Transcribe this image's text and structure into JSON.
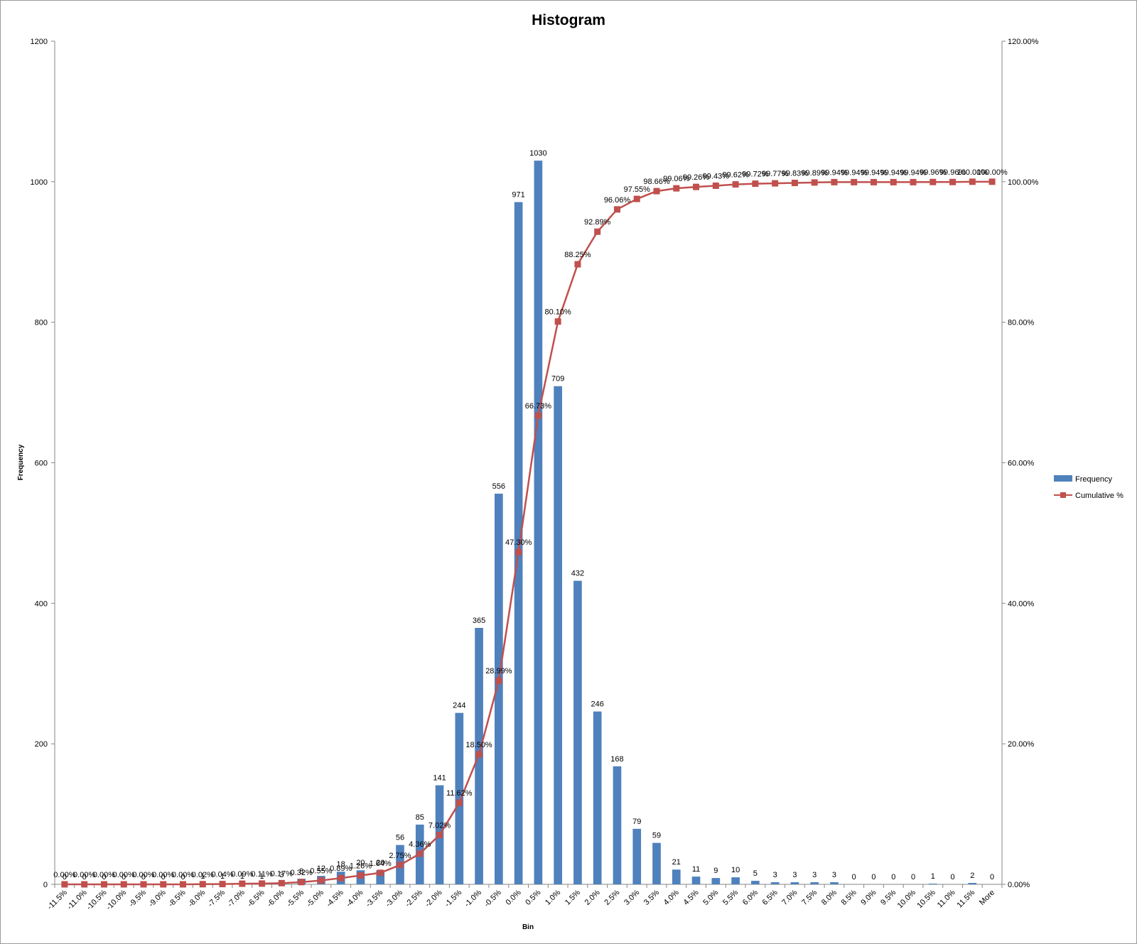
{
  "chart_data": {
    "type": "bar",
    "title": "Histogram",
    "xlabel": "Bin",
    "ylabel": "Frequency",
    "ylim": [
      0,
      1200
    ],
    "y2lim": [
      0,
      1.2
    ],
    "y_ticks": [
      "0",
      "200",
      "400",
      "600",
      "800",
      "1000",
      "1200"
    ],
    "y2_ticks": [
      "0.00%",
      "20.00%",
      "40.00%",
      "60.00%",
      "80.00%",
      "100.00%",
      "120.00%"
    ],
    "grid": false,
    "legend_position": "right",
    "categories": [
      "-11.5%",
      "-11.0%",
      "-10.5%",
      "-10.0%",
      "-9.5%",
      "-9.0%",
      "-8.5%",
      "-8.0%",
      "-7.5%",
      "-7.0%",
      "-6.5%",
      "-6.0%",
      "-5.5%",
      "-5.0%",
      "-4.5%",
      "-4.0%",
      "-3.5%",
      "-3.0%",
      "-2.5%",
      "-2.0%",
      "-1.5%",
      "-1.0%",
      "-0.5%",
      "0.0%",
      "0.5%",
      "1.0%",
      "1.5%",
      "2.0%",
      "2.5%",
      "3.0%",
      "3.5%",
      "4.0%",
      "4.5%",
      "5.0%",
      "5.5%",
      "6.0%",
      "6.5%",
      "7.0%",
      "7.5%",
      "8.0%",
      "8.5%",
      "9.0%",
      "9.5%",
      "10.0%",
      "10.5%",
      "11.0%",
      "11.5%",
      "More"
    ],
    "series": [
      {
        "name": "Frequency",
        "kind": "bar",
        "axis": "left",
        "color": "#4f81bd",
        "values": [
          0,
          0,
          0,
          0,
          0,
          0,
          0,
          1,
          1,
          1,
          1,
          3,
          8,
          12,
          18,
          20,
          20,
          56,
          85,
          141,
          244,
          365,
          556,
          971,
          1030,
          709,
          432,
          246,
          168,
          79,
          59,
          21,
          11,
          9,
          10,
          5,
          3,
          3,
          3,
          3,
          0,
          0,
          0,
          0,
          1,
          0,
          2,
          0
        ],
        "labels": [
          "0",
          "0",
          "0",
          "0",
          "0",
          "0",
          "0",
          "1",
          "1",
          "1",
          "1",
          "3",
          "8",
          "12",
          "18",
          "20",
          "20",
          "56",
          "85",
          "141",
          "244",
          "365",
          "556",
          "971",
          "1030",
          "709",
          "432",
          "246",
          "168",
          "79",
          "59",
          "21",
          "11",
          "9",
          "10",
          "5",
          "3",
          "3",
          "3",
          "3",
          "0",
          "0",
          "0",
          "0",
          "1",
          "0",
          "2",
          "0"
        ]
      },
      {
        "name": "Cumulative %",
        "kind": "line",
        "axis": "right",
        "color": "#c0504d",
        "values": [
          0.0,
          0.0,
          0.0,
          0.0,
          0.0,
          0.0,
          0.0,
          0.0002,
          0.0004,
          0.0009,
          0.0011,
          0.0017,
          0.0032,
          0.0055,
          0.0089,
          0.0126,
          0.0164,
          0.0275,
          0.0436,
          0.0702,
          0.1162,
          0.185,
          0.2899,
          0.473,
          0.6673,
          0.801,
          0.8825,
          0.9289,
          0.9606,
          0.9755,
          0.9866,
          0.9906,
          0.9926,
          0.9943,
          0.9962,
          0.9972,
          0.9977,
          0.9983,
          0.9989,
          0.9994,
          0.9994,
          0.9994,
          0.9994,
          0.9994,
          0.9996,
          0.9996,
          1.0,
          1.0
        ],
        "labels": [
          "0.00%",
          "0.00%",
          "0.00%",
          "0.00%",
          "0.00%",
          "0.00%",
          "0.00%",
          "0.02%",
          "0.04%",
          "0.09%",
          "0.11%",
          "0.17%",
          "0.32%",
          "0.55%",
          "0.89%",
          "1.26%",
          "1.64%",
          "2.75%",
          "4.36%",
          "7.02%",
          "11.62%",
          "18.50%",
          "28.99%",
          "47.30%",
          "66.73%",
          "80.10%",
          "88.25%",
          "92.89%",
          "96.06%",
          "97.55%",
          "98.66%",
          "99.06%",
          "99.26%",
          "99.43%",
          "99.62%",
          "99.72%",
          "99.77%",
          "99.83%",
          "99.89%",
          "99.94%",
          "99.94%",
          "99.94%",
          "99.94%",
          "99.94%",
          "99.96%",
          "99.96%",
          "100.00%",
          "100.00%"
        ]
      }
    ]
  }
}
